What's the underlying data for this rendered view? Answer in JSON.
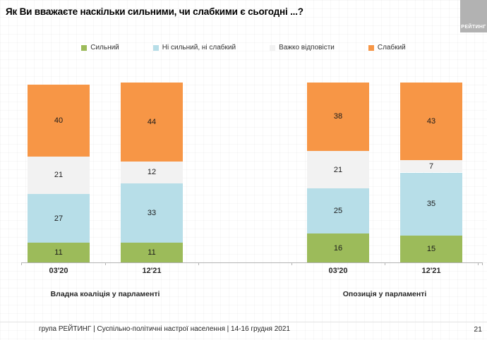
{
  "header": {
    "title": "Як Ви вважаєте наскільки сильними, чи слабкими є сьогодні ...?",
    "logo_text": "РЕЙТИНГ"
  },
  "chart_data": {
    "type": "bar",
    "stacked": true,
    "unit": "%",
    "ylim": [
      0,
      100
    ],
    "grid": false,
    "legend_position": "top",
    "legend": [
      {
        "label": "Сильний",
        "color": "#9CBB5A"
      },
      {
        "label": "Ні сильний, ні слабкий",
        "color": "#B7DEE8"
      },
      {
        "label": "Важко відповісти",
        "color": "#F2F2F2"
      },
      {
        "label": "Слабкий",
        "color": "#F79646"
      }
    ],
    "groups": [
      {
        "label": "Владна коаліція у парламенті",
        "bars": [
          {
            "category": "03'20",
            "values": [
              11,
              27,
              21,
              40
            ]
          },
          {
            "category": "12'21",
            "values": [
              11,
              33,
              12,
              44
            ]
          }
        ]
      },
      {
        "label": "Опозиція у парламенті",
        "bars": [
          {
            "category": "03'20",
            "values": [
              16,
              25,
              21,
              38
            ]
          },
          {
            "category": "12'21",
            "values": [
              15,
              35,
              7,
              43
            ]
          }
        ]
      }
    ]
  },
  "footer": {
    "source": "група РЕЙТИНГ | Суспільно-політичні настрої населення | 14-16 грудня 2021",
    "page_number": "21"
  }
}
